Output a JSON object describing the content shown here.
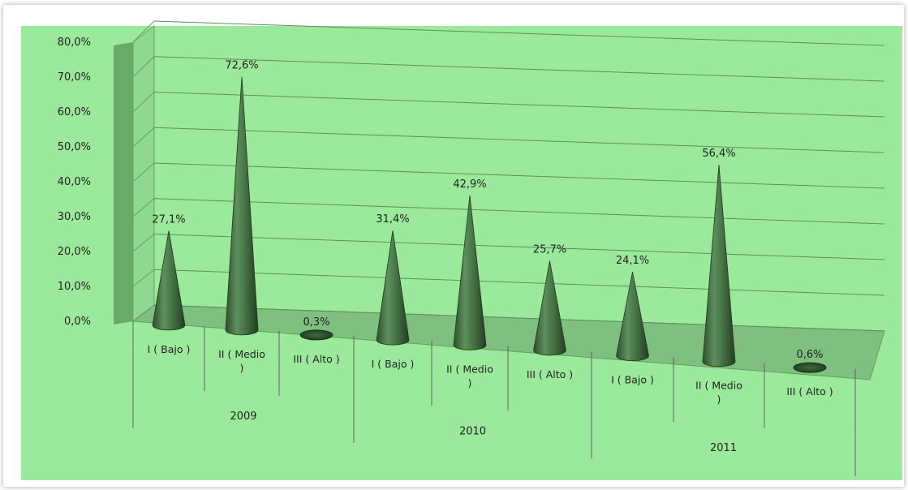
{
  "chart_data": {
    "type": "bar",
    "shape": "cone",
    "three_d": true,
    "background_color": "#9be99b",
    "cone_color": "#3f6b3f",
    "floor_color": "#7fbf7f",
    "wall_color": "#8fd88f",
    "grid": true,
    "ylim": [
      0,
      80
    ],
    "y_tick_labels": [
      "0,0%",
      "10,0%",
      "20,0%",
      "30,0%",
      "40,0%",
      "50,0%",
      "60,0%",
      "70,0%",
      "80,0%"
    ],
    "groups": [
      {
        "name": "2009",
        "categories": [
          {
            "lines": [
              "I ( Bajo )"
            ],
            "value": 27.1,
            "label": "27,1%"
          },
          {
            "lines": [
              "II ( Medio",
              ")"
            ],
            "value": 72.6,
            "label": "72,6%"
          },
          {
            "lines": [
              "III ( Alto )"
            ],
            "value": 0.3,
            "label": "0,3%"
          }
        ]
      },
      {
        "name": "2010",
        "categories": [
          {
            "lines": [
              "I ( Bajo )"
            ],
            "value": 31.4,
            "label": "31,4%"
          },
          {
            "lines": [
              "II ( Medio",
              ")"
            ],
            "value": 42.9,
            "label": "42,9%"
          },
          {
            "lines": [
              "III ( Alto )"
            ],
            "value": 25.7,
            "label": "25,7%"
          }
        ]
      },
      {
        "name": "2011",
        "categories": [
          {
            "lines": [
              "I ( Bajo )"
            ],
            "value": 24.1,
            "label": "24,1%"
          },
          {
            "lines": [
              "II ( Medio",
              ")"
            ],
            "value": 56.4,
            "label": "56,4%"
          },
          {
            "lines": [
              "III ( Alto )"
            ],
            "value": 0.6,
            "label": "0,6%"
          }
        ]
      }
    ]
  }
}
